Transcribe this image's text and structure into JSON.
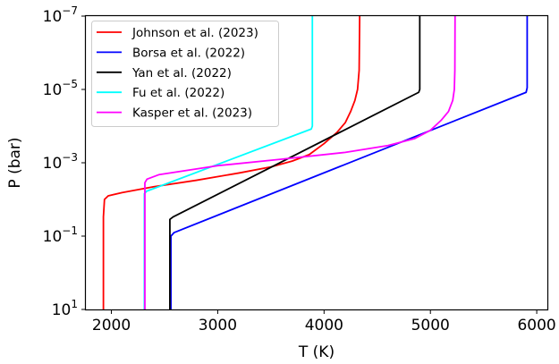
{
  "chart_data": {
    "type": "line",
    "xlabel": "T (K)",
    "ylabel": "P (bar)",
    "xlim": [
      1760,
      6100
    ],
    "ylim": [
      10,
      1e-07
    ],
    "y_scale": "log",
    "y_inverted": true,
    "x_ticks": [
      {
        "value": 2000,
        "label": "2000"
      },
      {
        "value": 3000,
        "label": "3000"
      },
      {
        "value": 4000,
        "label": "4000"
      },
      {
        "value": 5000,
        "label": "5000"
      },
      {
        "value": 6000,
        "label": "6000"
      }
    ],
    "y_ticks": [
      {
        "value": 1e-07,
        "base": "10",
        "exp": "−7"
      },
      {
        "value": 1e-05,
        "base": "10",
        "exp": "−5"
      },
      {
        "value": 0.001,
        "base": "10",
        "exp": "−3"
      },
      {
        "value": 0.1,
        "base": "10",
        "exp": "−1"
      },
      {
        "value": 10,
        "base": "10",
        "exp": "1"
      }
    ],
    "grid": false,
    "legend_position": "top-left",
    "series": [
      {
        "name": "Johnson et al. (2023)",
        "color": "#ff0000",
        "points": [
          [
            1925,
            10
          ],
          [
            1925,
            0.03
          ],
          [
            1935,
            0.01
          ],
          [
            1970,
            0.008
          ],
          [
            2100,
            0.0065
          ],
          [
            2400,
            0.0045
          ],
          [
            2800,
            0.003
          ],
          [
            3200,
            0.0019
          ],
          [
            3500,
            0.0013
          ],
          [
            3700,
            0.0009
          ],
          [
            3860,
            0.0006
          ],
          [
            4000,
            0.0003
          ],
          [
            4120,
            0.00015
          ],
          [
            4200,
            8e-05
          ],
          [
            4250,
            4e-05
          ],
          [
            4290,
            2e-05
          ],
          [
            4315,
            1e-05
          ],
          [
            4330,
            3e-06
          ],
          [
            4335,
            1e-07
          ]
        ]
      },
      {
        "name": "Borsa et al. (2022)",
        "color": "#0000ff",
        "points": [
          [
            2560,
            10
          ],
          [
            2560,
            0.1
          ],
          [
            2590,
            0.08
          ],
          [
            5900,
            1.2e-05
          ],
          [
            5910,
            9e-06
          ],
          [
            5910,
            1e-07
          ]
        ]
      },
      {
        "name": "Yan et al. (2022)",
        "color": "#000000",
        "points": [
          [
            2550,
            10
          ],
          [
            2550,
            0.035
          ],
          [
            2580,
            0.03
          ],
          [
            4890,
            1.2e-05
          ],
          [
            4900,
            1e-05
          ],
          [
            4900,
            1e-07
          ]
        ]
      },
      {
        "name": "Fu et al. (2022)",
        "color": "#00ffff",
        "points": [
          [
            2310,
            10
          ],
          [
            2310,
            0.007
          ],
          [
            2330,
            0.006
          ],
          [
            3880,
            0.00012
          ],
          [
            3890,
            0.0001
          ],
          [
            3890,
            1e-07
          ]
        ]
      },
      {
        "name": "Kasper et al. (2023)",
        "color": "#ff00ff",
        "points": [
          [
            2315,
            10
          ],
          [
            2315,
            0.0035
          ],
          [
            2335,
            0.0028
          ],
          [
            2450,
            0.0021
          ],
          [
            3000,
            0.0012
          ],
          [
            3600,
            0.0008
          ],
          [
            4200,
            0.00052
          ],
          [
            4600,
            0.00034
          ],
          [
            4850,
            0.00022
          ],
          [
            5000,
            0.00013
          ],
          [
            5100,
            7e-05
          ],
          [
            5170,
            4e-05
          ],
          [
            5210,
            2e-05
          ],
          [
            5225,
            1e-05
          ],
          [
            5230,
            3e-06
          ],
          [
            5232,
            1e-07
          ]
        ]
      }
    ]
  }
}
